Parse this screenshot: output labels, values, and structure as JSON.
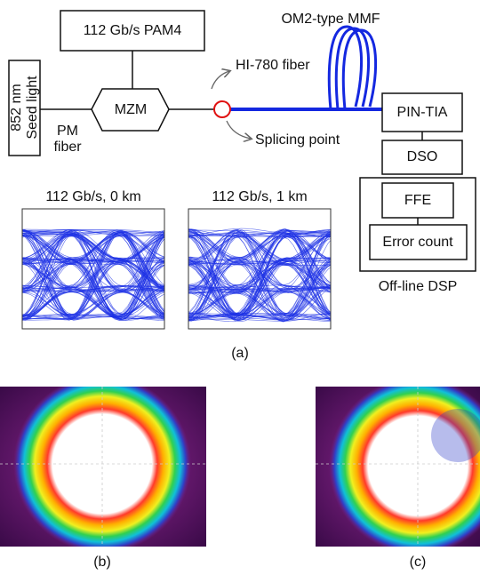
{
  "figure": {
    "panel_a": {
      "label": "(a)",
      "pam4": "112 Gb/s PAM4",
      "seed_light": [
        "852 nm",
        "Seed light"
      ],
      "pm_fiber": [
        "PM",
        "fiber"
      ],
      "mzm": "MZM",
      "hi780": "HI-780 fiber",
      "mmf": "OM2-type MMF",
      "splicing": "Splicing point",
      "pin_tia": "PIN-TIA",
      "dso": "DSO",
      "ffe": "FFE",
      "error_count": "Error count",
      "dsp": "Off-line DSP",
      "eye_0km": "112 Gb/s, 0 km",
      "eye_1km": "112 Gb/s, 1 km"
    },
    "panel_b": {
      "label": "(b)"
    },
    "panel_c": {
      "label": "(c)"
    }
  }
}
